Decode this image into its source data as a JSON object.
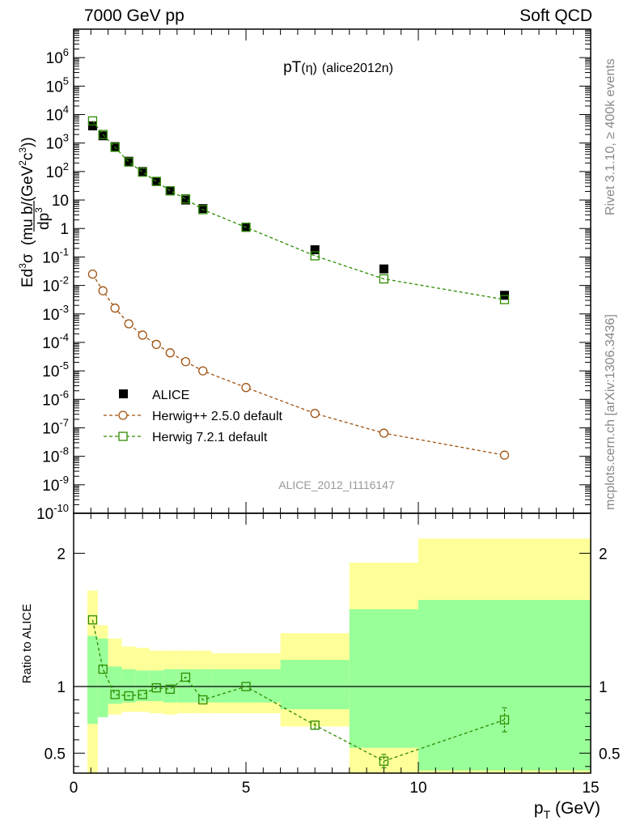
{
  "header": {
    "left": "7000 GeV pp",
    "right": "Soft QCD"
  },
  "side_labels": {
    "rivet": "Rivet 3.1.10, ≥ 400k events",
    "mcplots": "mcplots.cern.ch [arXiv:1306.3436]"
  },
  "colors": {
    "data": "#000000",
    "herwigpp": "#a0520f",
    "herwig7": "#2e8b00",
    "band_outer": "#ffff99",
    "band_inner": "#99ff99"
  },
  "chart_data": [
    {
      "type": "scatter",
      "title": "pT(η) (alice2012n)",
      "title_parts": {
        "main": "pT",
        "paren": "(η)",
        "tag": "(alice2012n)"
      },
      "ylabel": {
        "prefix": "E",
        "d1": "d",
        "sup1": "3",
        "sigma": "σ",
        "d2": "dp",
        "sup2": "3",
        "units": "(mu b/(GeV",
        "units_sup": "2",
        "units_c": "c",
        "units_sup2": "3",
        "units_end": "))"
      },
      "analysis_id": "ALICE_2012_I1116147",
      "yscale": "log",
      "xlim": [
        0,
        15
      ],
      "ylim": [
        1e-10,
        10000000.0
      ],
      "ytick_labels": [
        "10^{-10}",
        "10^{-9}",
        "10^{-8}",
        "10^{-7}",
        "10^{-6}",
        "10^{-5}",
        "10^{-4}",
        "10^{-3}",
        "10^{-2}",
        "10^{-1}",
        "1",
        "10",
        "10^{2}",
        "10^{3}",
        "10^{4}",
        "10^{5}",
        "10^{6}"
      ],
      "legend_position": "bottom-left",
      "series": [
        {
          "name": "ALICE",
          "marker": "filled-square",
          "x": [
            0.55,
            0.85,
            1.2,
            1.6,
            2.0,
            2.4,
            2.8,
            3.25,
            3.75,
            5.0,
            7.0,
            9.0,
            12.5
          ],
          "y": [
            4000,
            1800,
            750,
            230,
            100,
            45,
            21,
            10,
            5,
            1.1,
            0.18,
            0.038,
            0.0045
          ]
        },
        {
          "name": "Herwig++ 2.5.0 default",
          "marker": "open-circle",
          "x": [
            0.55,
            0.85,
            1.2,
            1.6,
            2.0,
            2.4,
            2.8,
            3.25,
            3.75,
            5.0,
            7.0,
            9.0,
            12.5
          ],
          "y": [
            0.025,
            0.0065,
            0.0016,
            0.00045,
            0.00018,
            8.5e-05,
            4.3e-05,
            2.1e-05,
            1e-05,
            2.6e-06,
            3.2e-07,
            6.5e-08,
            1.1e-08
          ]
        },
        {
          "name": "Herwig 7.2.1 default",
          "marker": "open-square",
          "x": [
            0.55,
            0.85,
            1.2,
            1.6,
            2.0,
            2.4,
            2.8,
            3.25,
            3.75,
            5.0,
            7.0,
            9.0,
            12.5
          ],
          "y": [
            6000,
            2000,
            710,
            215,
            95,
            45,
            21,
            11,
            4.6,
            1.1,
            0.11,
            0.017,
            0.0032
          ]
        }
      ]
    },
    {
      "type": "line",
      "ylabel": "Ratio to ALICE",
      "xlabel": "p_T (GeV)",
      "xlabel_parts": {
        "p": "p",
        "sub": "T",
        "unit": " (GeV)"
      },
      "xlim": [
        0,
        15
      ],
      "ylim": [
        0.35,
        2.3
      ],
      "xticks": [
        "0",
        "5",
        "10",
        "15"
      ],
      "yticks": [
        "0.5",
        "1",
        "2"
      ],
      "bins": [
        {
          "lo": 0.4,
          "hi": 0.7,
          "outer": [
            0.3,
            1.72
          ],
          "inner": [
            0.72,
            1.38
          ]
        },
        {
          "lo": 0.7,
          "hi": 1.0,
          "outer": [
            0.77,
            1.46
          ],
          "inner": [
            0.77,
            1.36
          ]
        },
        {
          "lo": 1.0,
          "hi": 1.4,
          "outer": [
            0.79,
            1.36
          ],
          "inner": [
            0.87,
            1.15
          ]
        },
        {
          "lo": 1.4,
          "hi": 1.8,
          "outer": [
            0.81,
            1.3
          ],
          "inner": [
            0.88,
            1.13
          ]
        },
        {
          "lo": 1.8,
          "hi": 2.2,
          "outer": [
            0.81,
            1.29
          ],
          "inner": [
            0.89,
            1.12
          ]
        },
        {
          "lo": 2.2,
          "hi": 2.6,
          "outer": [
            0.8,
            1.27
          ],
          "inner": [
            0.89,
            1.12
          ]
        },
        {
          "lo": 2.6,
          "hi": 3.0,
          "outer": [
            0.79,
            1.27
          ],
          "inner": [
            0.88,
            1.13
          ]
        },
        {
          "lo": 3.0,
          "hi": 3.5,
          "outer": [
            0.8,
            1.27
          ],
          "inner": [
            0.88,
            1.13
          ]
        },
        {
          "lo": 3.5,
          "hi": 4.0,
          "outer": [
            0.8,
            1.27
          ],
          "inner": [
            0.88,
            1.13
          ]
        },
        {
          "lo": 4.0,
          "hi": 6.0,
          "outer": [
            0.8,
            1.25
          ],
          "inner": [
            0.88,
            1.13
          ]
        },
        {
          "lo": 6.0,
          "hi": 8.0,
          "outer": [
            0.7,
            1.4
          ],
          "inner": [
            0.83,
            1.2
          ]
        },
        {
          "lo": 8.0,
          "hi": 10.0,
          "outer": [
            0.35,
            1.93
          ],
          "inner": [
            0.54,
            1.58
          ]
        },
        {
          "lo": 10.0,
          "hi": 15.0,
          "outer": [
            0.35,
            2.11
          ],
          "inner": [
            0.37,
            1.65
          ]
        }
      ],
      "series": [
        {
          "name": "Herwig 7.2.1 default",
          "marker": "open-square",
          "x": [
            0.55,
            0.85,
            1.2,
            1.6,
            2.0,
            2.4,
            2.8,
            3.25,
            3.75,
            5.0,
            7.0,
            9.0,
            12.5
          ],
          "y": [
            1.5,
            1.13,
            0.94,
            0.93,
            0.94,
            0.99,
            0.98,
            1.07,
            0.9,
            1.0,
            0.71,
            0.44,
            0.75
          ],
          "err": [
            0,
            0,
            0,
            0,
            0,
            0,
            0,
            0,
            0,
            0,
            0.03,
            0.05,
            0.09
          ]
        }
      ]
    }
  ]
}
